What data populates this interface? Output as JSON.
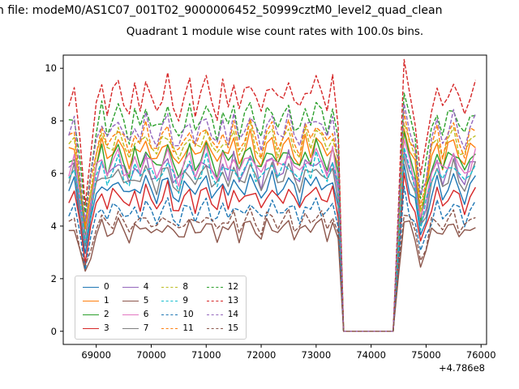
{
  "figure": {
    "suptitle": "n file: modeM0/AS1C07_001T02_9000006452_50999cztM0_level2_quad_clean",
    "background": "#ffffff"
  },
  "chart_data": {
    "type": "line",
    "title": "Quadrant 1 module wise count rates with 100.0s bins.",
    "xlabel": "",
    "ylabel": "",
    "x_offset_label": "+4.786e8",
    "x_ticks": [
      69000,
      70000,
      71000,
      72000,
      73000,
      74000,
      75000,
      76000
    ],
    "y_ticks": [
      0,
      2,
      4,
      6,
      8,
      10
    ],
    "x_range": [
      68400,
      76100
    ],
    "y_range": [
      -0.5,
      10.5
    ],
    "grid": false,
    "legend_position": "lower-left",
    "legend_columns": 4,
    "x_start": 68500,
    "x_step": 100,
    "profile": [
      0.97,
      1.03,
      0.8,
      0.55,
      0.75,
      0.95,
      1.04,
      0.94,
      1.0,
      1.06,
      0.97,
      0.92,
      1.02,
      0.96,
      1.05,
      0.98,
      0.93,
      1.0,
      1.06,
      0.95,
      0.9,
      0.99,
      1.04,
      0.94,
      1.0,
      1.07,
      0.97,
      0.92,
      1.03,
      0.96,
      1.05,
      0.94,
      1.0,
      1.07,
      0.98,
      0.92,
      1.02,
      1.05,
      0.96,
      1.0,
      1.06,
      0.97,
      0.93,
      1.04,
      0.99,
      1.07,
      1.02,
      0.95,
      1.05,
      0.88,
      0.0,
      0.0,
      0.0,
      0.0,
      0.0,
      0.0,
      0.0,
      0.0,
      0.0,
      0.0,
      0.55,
      1.13,
      1.0,
      0.9,
      0.65,
      0.78,
      0.95,
      1.03,
      0.93,
      1.0,
      1.06,
      0.97,
      0.92,
      1.0,
      1.05
    ],
    "series": [
      {
        "name": "0",
        "color": "#1f77b4",
        "style": "solid",
        "level": 5.5
      },
      {
        "name": "1",
        "color": "#ff7f0e",
        "style": "solid",
        "level": 6.9
      },
      {
        "name": "2",
        "color": "#2ca02c",
        "style": "solid",
        "level": 6.6
      },
      {
        "name": "3",
        "color": "#d62728",
        "style": "solid",
        "level": 5.1
      },
      {
        "name": "4",
        "color": "#9467bd",
        "style": "solid",
        "level": 6.2
      },
      {
        "name": "5",
        "color": "#8c564b",
        "style": "solid",
        "level": 3.9
      },
      {
        "name": "6",
        "color": "#e377c2",
        "style": "solid",
        "level": 6.4
      },
      {
        "name": "7",
        "color": "#7f7f7f",
        "style": "solid",
        "level": 5.9
      },
      {
        "name": "8",
        "color": "#bcbd22",
        "style": "dashed",
        "level": 7.2
      },
      {
        "name": "9",
        "color": "#17becf",
        "style": "dashed",
        "level": 6.1
      },
      {
        "name": "10",
        "color": "#1f77b4",
        "style": "dashed",
        "level": 4.6
      },
      {
        "name": "11",
        "color": "#ff7f0e",
        "style": "dashed",
        "level": 7.4
      },
      {
        "name": "12",
        "color": "#2ca02c",
        "style": "dashed",
        "level": 8.1
      },
      {
        "name": "13",
        "color": "#d62728",
        "style": "dashed",
        "level": 9.0
      },
      {
        "name": "14",
        "color": "#9467bd",
        "style": "dashed",
        "level": 7.7
      },
      {
        "name": "15",
        "color": "#8c564b",
        "style": "dashed",
        "level": 4.2
      }
    ]
  }
}
